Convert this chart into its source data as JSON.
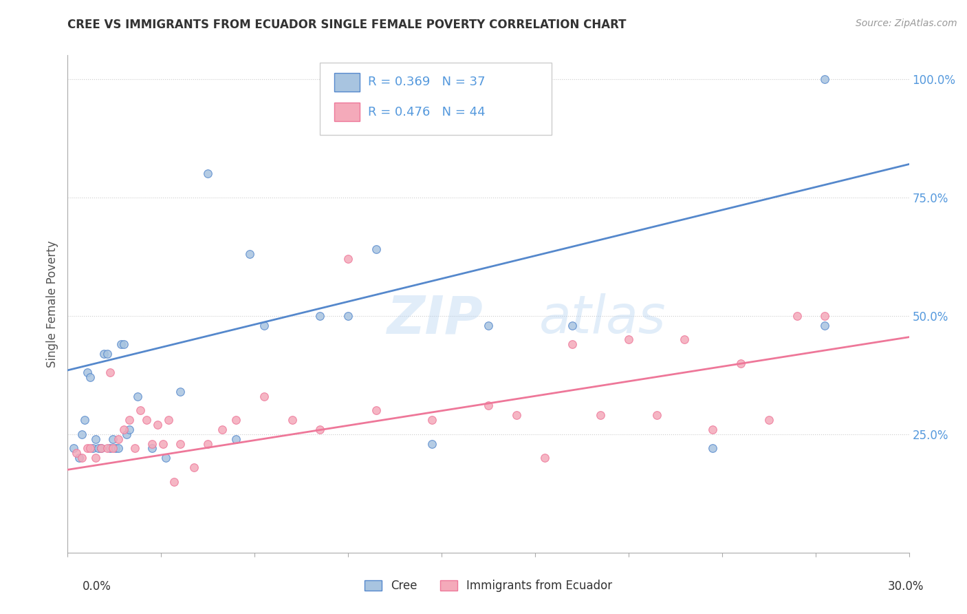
{
  "title": "CREE VS IMMIGRANTS FROM ECUADOR SINGLE FEMALE POVERTY CORRELATION CHART",
  "source": "Source: ZipAtlas.com",
  "ylabel": "Single Female Poverty",
  "ytick_labels": [
    "25.0%",
    "50.0%",
    "75.0%",
    "100.0%"
  ],
  "ytick_values": [
    0.25,
    0.5,
    0.75,
    1.0
  ],
  "xlim": [
    0.0,
    0.3
  ],
  "ylim": [
    0.0,
    1.05
  ],
  "legend_blue_r": "R = 0.369",
  "legend_blue_n": "N = 37",
  "legend_pink_r": "R = 0.476",
  "legend_pink_n": "N = 44",
  "blue_color": "#A8C4E0",
  "pink_color": "#F4AABA",
  "blue_line_color": "#5588CC",
  "pink_line_color": "#EE7799",
  "watermark_zip": "ZIP",
  "watermark_atlas": "atlas",
  "blue_scatter_x": [
    0.002,
    0.004,
    0.005,
    0.006,
    0.007,
    0.008,
    0.009,
    0.01,
    0.011,
    0.012,
    0.013,
    0.014,
    0.015,
    0.016,
    0.017,
    0.018,
    0.019,
    0.02,
    0.021,
    0.022,
    0.025,
    0.03,
    0.035,
    0.04,
    0.05,
    0.06,
    0.065,
    0.07,
    0.09,
    0.1,
    0.11,
    0.13,
    0.15,
    0.18,
    0.23,
    0.27,
    0.27
  ],
  "blue_scatter_y": [
    0.22,
    0.2,
    0.25,
    0.28,
    0.38,
    0.37,
    0.22,
    0.24,
    0.22,
    0.22,
    0.42,
    0.42,
    0.22,
    0.24,
    0.22,
    0.22,
    0.44,
    0.44,
    0.25,
    0.26,
    0.33,
    0.22,
    0.2,
    0.34,
    0.8,
    0.24,
    0.63,
    0.48,
    0.5,
    0.5,
    0.64,
    0.23,
    0.48,
    0.48,
    0.22,
    1.0,
    0.48
  ],
  "pink_scatter_x": [
    0.003,
    0.005,
    0.007,
    0.008,
    0.01,
    0.012,
    0.014,
    0.015,
    0.016,
    0.018,
    0.02,
    0.022,
    0.024,
    0.026,
    0.028,
    0.03,
    0.032,
    0.034,
    0.036,
    0.038,
    0.04,
    0.045,
    0.05,
    0.055,
    0.06,
    0.07,
    0.08,
    0.09,
    0.1,
    0.11,
    0.13,
    0.15,
    0.16,
    0.17,
    0.18,
    0.19,
    0.2,
    0.21,
    0.22,
    0.23,
    0.24,
    0.25,
    0.26,
    0.27
  ],
  "pink_scatter_y": [
    0.21,
    0.2,
    0.22,
    0.22,
    0.2,
    0.22,
    0.22,
    0.38,
    0.22,
    0.24,
    0.26,
    0.28,
    0.22,
    0.3,
    0.28,
    0.23,
    0.27,
    0.23,
    0.28,
    0.15,
    0.23,
    0.18,
    0.23,
    0.26,
    0.28,
    0.33,
    0.28,
    0.26,
    0.62,
    0.3,
    0.28,
    0.31,
    0.29,
    0.2,
    0.44,
    0.29,
    0.45,
    0.29,
    0.45,
    0.26,
    0.4,
    0.28,
    0.5,
    0.5
  ],
  "blue_trendline_x": [
    0.0,
    0.3
  ],
  "blue_trendline_y": [
    0.385,
    0.82
  ],
  "pink_trendline_x": [
    0.0,
    0.3
  ],
  "pink_trendline_y": [
    0.175,
    0.455
  ],
  "background_color": "#ffffff",
  "grid_color": "#cccccc",
  "title_color": "#333333",
  "source_color": "#999999",
  "ylabel_color": "#555555",
  "ytick_color": "#5599DD",
  "legend_text_color": "#5599DD"
}
